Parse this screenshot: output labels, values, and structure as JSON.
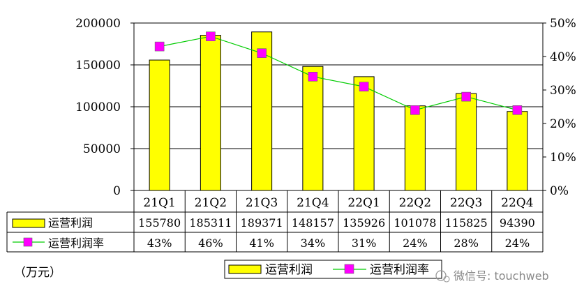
{
  "chart_data": {
    "type": "bar",
    "categories": [
      "21Q1",
      "21Q2",
      "21Q3",
      "21Q4",
      "22Q1",
      "22Q2",
      "22Q3",
      "22Q4"
    ],
    "series": [
      {
        "name": "运营利润",
        "type": "bar",
        "axis": "left",
        "values": [
          155780,
          185311,
          189371,
          148157,
          135926,
          101078,
          115825,
          94390
        ],
        "labels": [
          "155780",
          "185311",
          "189371",
          "148157",
          "135926",
          "101078",
          "115825",
          "94390"
        ],
        "color": "#ffff00"
      },
      {
        "name": "运营利润率",
        "type": "line",
        "axis": "right",
        "values": [
          43,
          46,
          41,
          34,
          31,
          24,
          28,
          24
        ],
        "labels": [
          "43%",
          "46%",
          "41%",
          "34%",
          "31%",
          "24%",
          "28%",
          "24%"
        ],
        "color": "#00cc00",
        "marker_color": "#ff00ff"
      }
    ],
    "y_left": {
      "ylim": [
        0,
        200000
      ],
      "ticks": [
        "0",
        "50000",
        "100000",
        "150000",
        "200000"
      ]
    },
    "y_right": {
      "ylim": [
        0,
        50
      ],
      "ticks": [
        "0%",
        "10%",
        "20%",
        "30%",
        "40%",
        "50%"
      ]
    },
    "unit_label": "（万元）",
    "legend": [
      "运营利润",
      "运营利润率"
    ],
    "legend_position": "bottom",
    "grid": true,
    "data_table": true
  },
  "watermark": "微信号: touchweb"
}
